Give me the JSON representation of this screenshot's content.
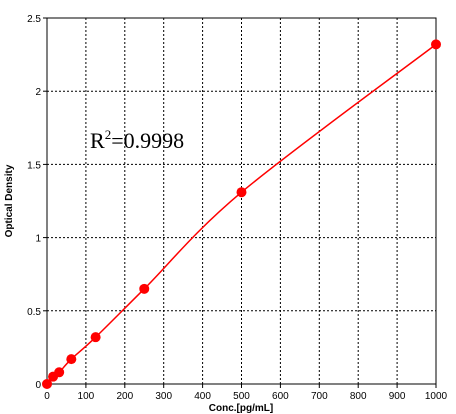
{
  "chart_data": {
    "type": "scatter",
    "title": "",
    "xlabel": "Conc.[pg/mL]",
    "ylabel": "Optical Density",
    "xlim": [
      0,
      1000
    ],
    "ylim": [
      0,
      2.5
    ],
    "xticks": [
      0,
      100,
      200,
      300,
      400,
      500,
      600,
      700,
      800,
      900,
      1000
    ],
    "yticks": [
      0,
      0.5,
      1,
      1.5,
      2,
      2.5
    ],
    "xtick_labels": [
      "0",
      "100",
      "200",
      "300",
      "400",
      "500",
      "600",
      "700",
      "800",
      "900",
      "1000"
    ],
    "ytick_labels": [
      "0",
      "0.5",
      "1",
      "1.5",
      "2",
      "2.5"
    ],
    "grid": true,
    "legend": "none",
    "annotation": {
      "text": "R",
      "superscript": "2",
      "suffix": "=0.9998"
    },
    "series": [
      {
        "color": "#ff0000",
        "points": [
          {
            "x": 0,
            "y": 0.0
          },
          {
            "x": 15.6,
            "y": 0.05
          },
          {
            "x": 31.3,
            "y": 0.08
          },
          {
            "x": 62.5,
            "y": 0.17
          },
          {
            "x": 125,
            "y": 0.32
          },
          {
            "x": 250,
            "y": 0.65
          },
          {
            "x": 500,
            "y": 1.31
          },
          {
            "x": 1000,
            "y": 2.32
          }
        ],
        "fit_line": true
      }
    ]
  }
}
